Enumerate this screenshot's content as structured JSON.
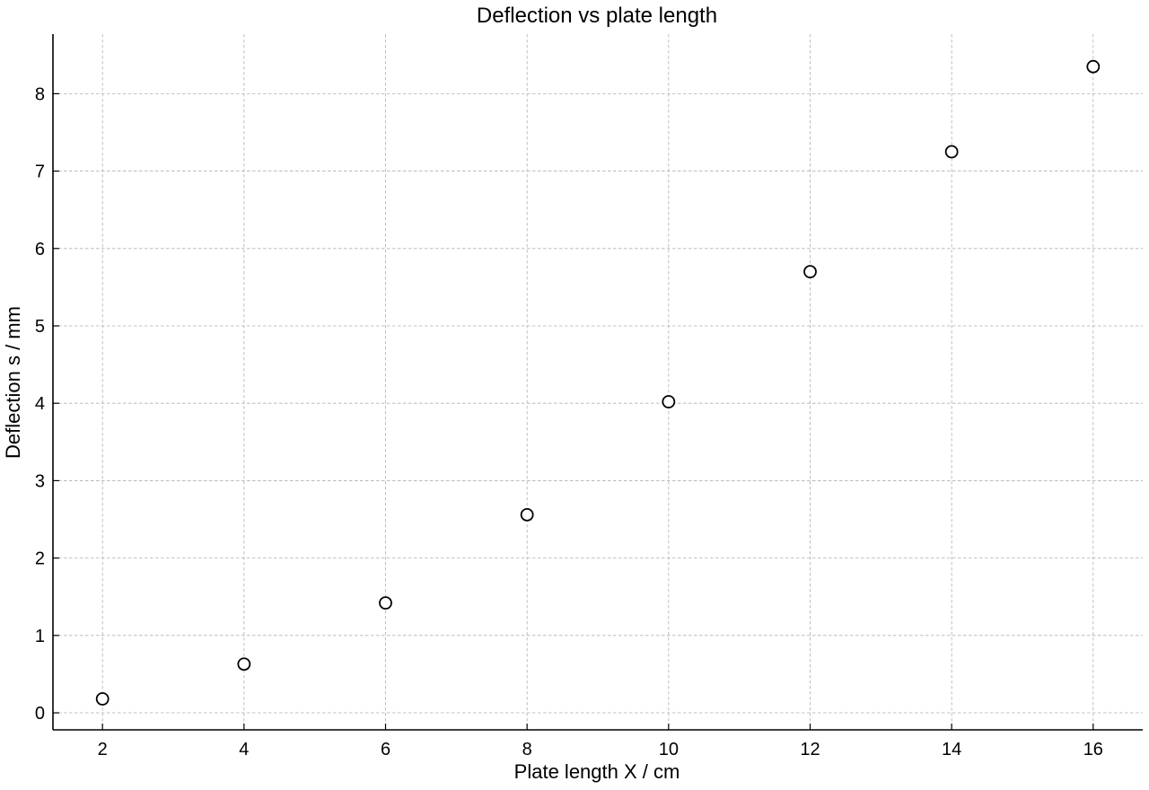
{
  "chart_data": {
    "type": "scatter",
    "title": "Deflection vs plate length",
    "xlabel": "Plate length X / cm",
    "ylabel": "Deflection s / mm",
    "xlim": [
      1.3,
      16.7
    ],
    "ylim": [
      -0.22,
      8.77
    ],
    "xticks": [
      2,
      4,
      6,
      8,
      10,
      12,
      14,
      16
    ],
    "yticks": [
      0,
      1,
      2,
      3,
      4,
      5,
      6,
      7,
      8
    ],
    "grid": true,
    "marker": "open-circle",
    "series": [
      {
        "x": [
          2,
          4,
          6,
          8,
          10,
          12,
          14,
          16
        ],
        "y": [
          0.18,
          0.63,
          1.42,
          2.56,
          4.02,
          5.7,
          7.25,
          8.35
        ]
      }
    ],
    "colors": {
      "marker_edge": "#000000",
      "marker_face": "#ffffff",
      "grid": "#b0b0b0",
      "axis": "#000000"
    }
  }
}
